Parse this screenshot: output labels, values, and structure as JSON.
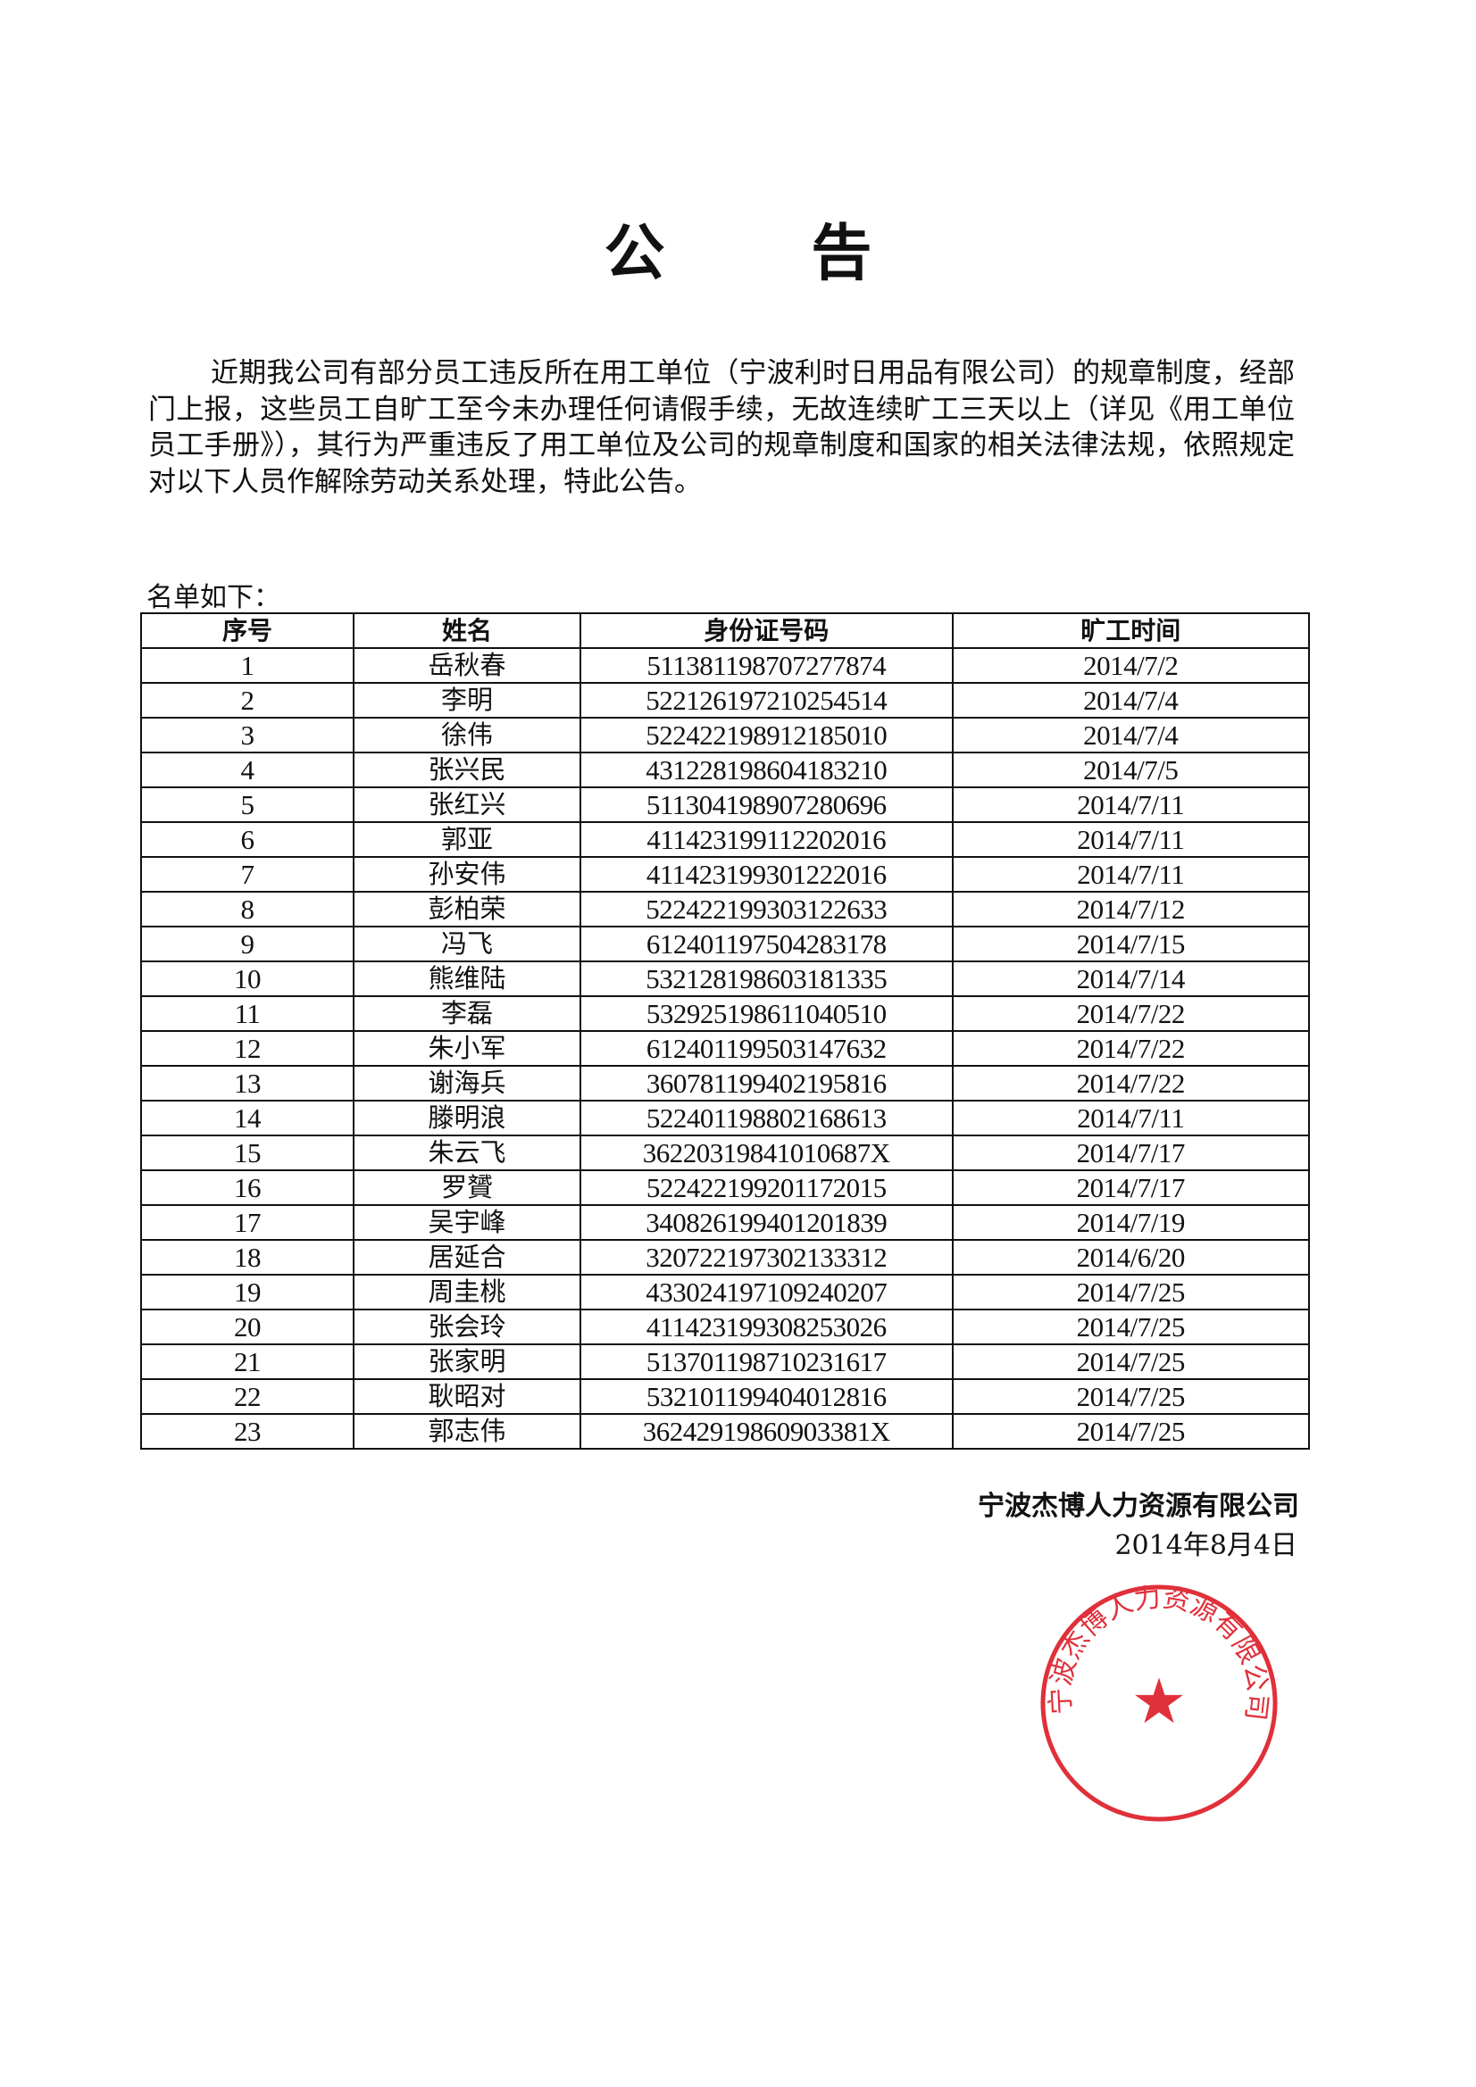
{
  "title": "公 告",
  "body": "近期我公司有部分员工违反所在用工单位（宁波利时日用品有限公司）的规章制度，经部门上报，这些员工自旷工至今未办理任何请假手续，无故连续旷工三天以上（详见《用工单位员工手册》），其行为严重违反了用工单位及公司的规章制度和国家的相关法律法规，依照规定对以下人员作解除劳动关系处理，特此公告。",
  "list_label": "名单如下：",
  "table": {
    "headers": [
      "序号",
      "姓名",
      "身份证号码",
      "旷工时间"
    ],
    "rows": [
      [
        "1",
        "岳秋春",
        "511381198707277874",
        "2014/7/2"
      ],
      [
        "2",
        "李明",
        "522126197210254514",
        "2014/7/4"
      ],
      [
        "3",
        "徐伟",
        "522422198912185010",
        "2014/7/4"
      ],
      [
        "4",
        "张兴民",
        "431228198604183210",
        "2014/7/5"
      ],
      [
        "5",
        "张红兴",
        "511304198907280696",
        "2014/7/11"
      ],
      [
        "6",
        "郭亚",
        "411423199112202016",
        "2014/7/11"
      ],
      [
        "7",
        "孙安伟",
        "411423199301222016",
        "2014/7/11"
      ],
      [
        "8",
        "彭柏荣",
        "522422199303122633",
        "2014/7/12"
      ],
      [
        "9",
        "冯飞",
        "612401197504283178",
        "2014/7/15"
      ],
      [
        "10",
        "熊维陆",
        "532128198603181335",
        "2014/7/14"
      ],
      [
        "11",
        "李磊",
        "532925198611040510",
        "2014/7/22"
      ],
      [
        "12",
        "朱小军",
        "612401199503147632",
        "2014/7/22"
      ],
      [
        "13",
        "谢海兵",
        "360781199402195816",
        "2014/7/22"
      ],
      [
        "14",
        "滕明浪",
        "522401198802168613",
        "2014/7/11"
      ],
      [
        "15",
        "朱云飞",
        "36220319841010687X",
        "2014/7/17"
      ],
      [
        "16",
        "罗贇",
        "522422199201172015",
        "2014/7/17"
      ],
      [
        "17",
        "吴宇峰",
        "340826199401201839",
        "2014/7/19"
      ],
      [
        "18",
        "居延合",
        "320722197302133312",
        "2014/6/20"
      ],
      [
        "19",
        "周圭桃",
        "433024197109240207",
        "2014/7/25"
      ],
      [
        "20",
        "张会玲",
        "411423199308253026",
        "2014/7/25"
      ],
      [
        "21",
        "张家明",
        "513701198710231617",
        "2014/7/25"
      ],
      [
        "22",
        "耿昭对",
        "532101199404012816",
        "2014/7/25"
      ],
      [
        "23",
        "郭志伟",
        "36242919860903381X",
        "2014/7/25"
      ]
    ]
  },
  "signature": "宁波杰博人力资源有限公司",
  "date": "2014年8月4日",
  "stamp": {
    "text": "宁波杰博人力资源有限公司",
    "color": "#e0303a"
  }
}
